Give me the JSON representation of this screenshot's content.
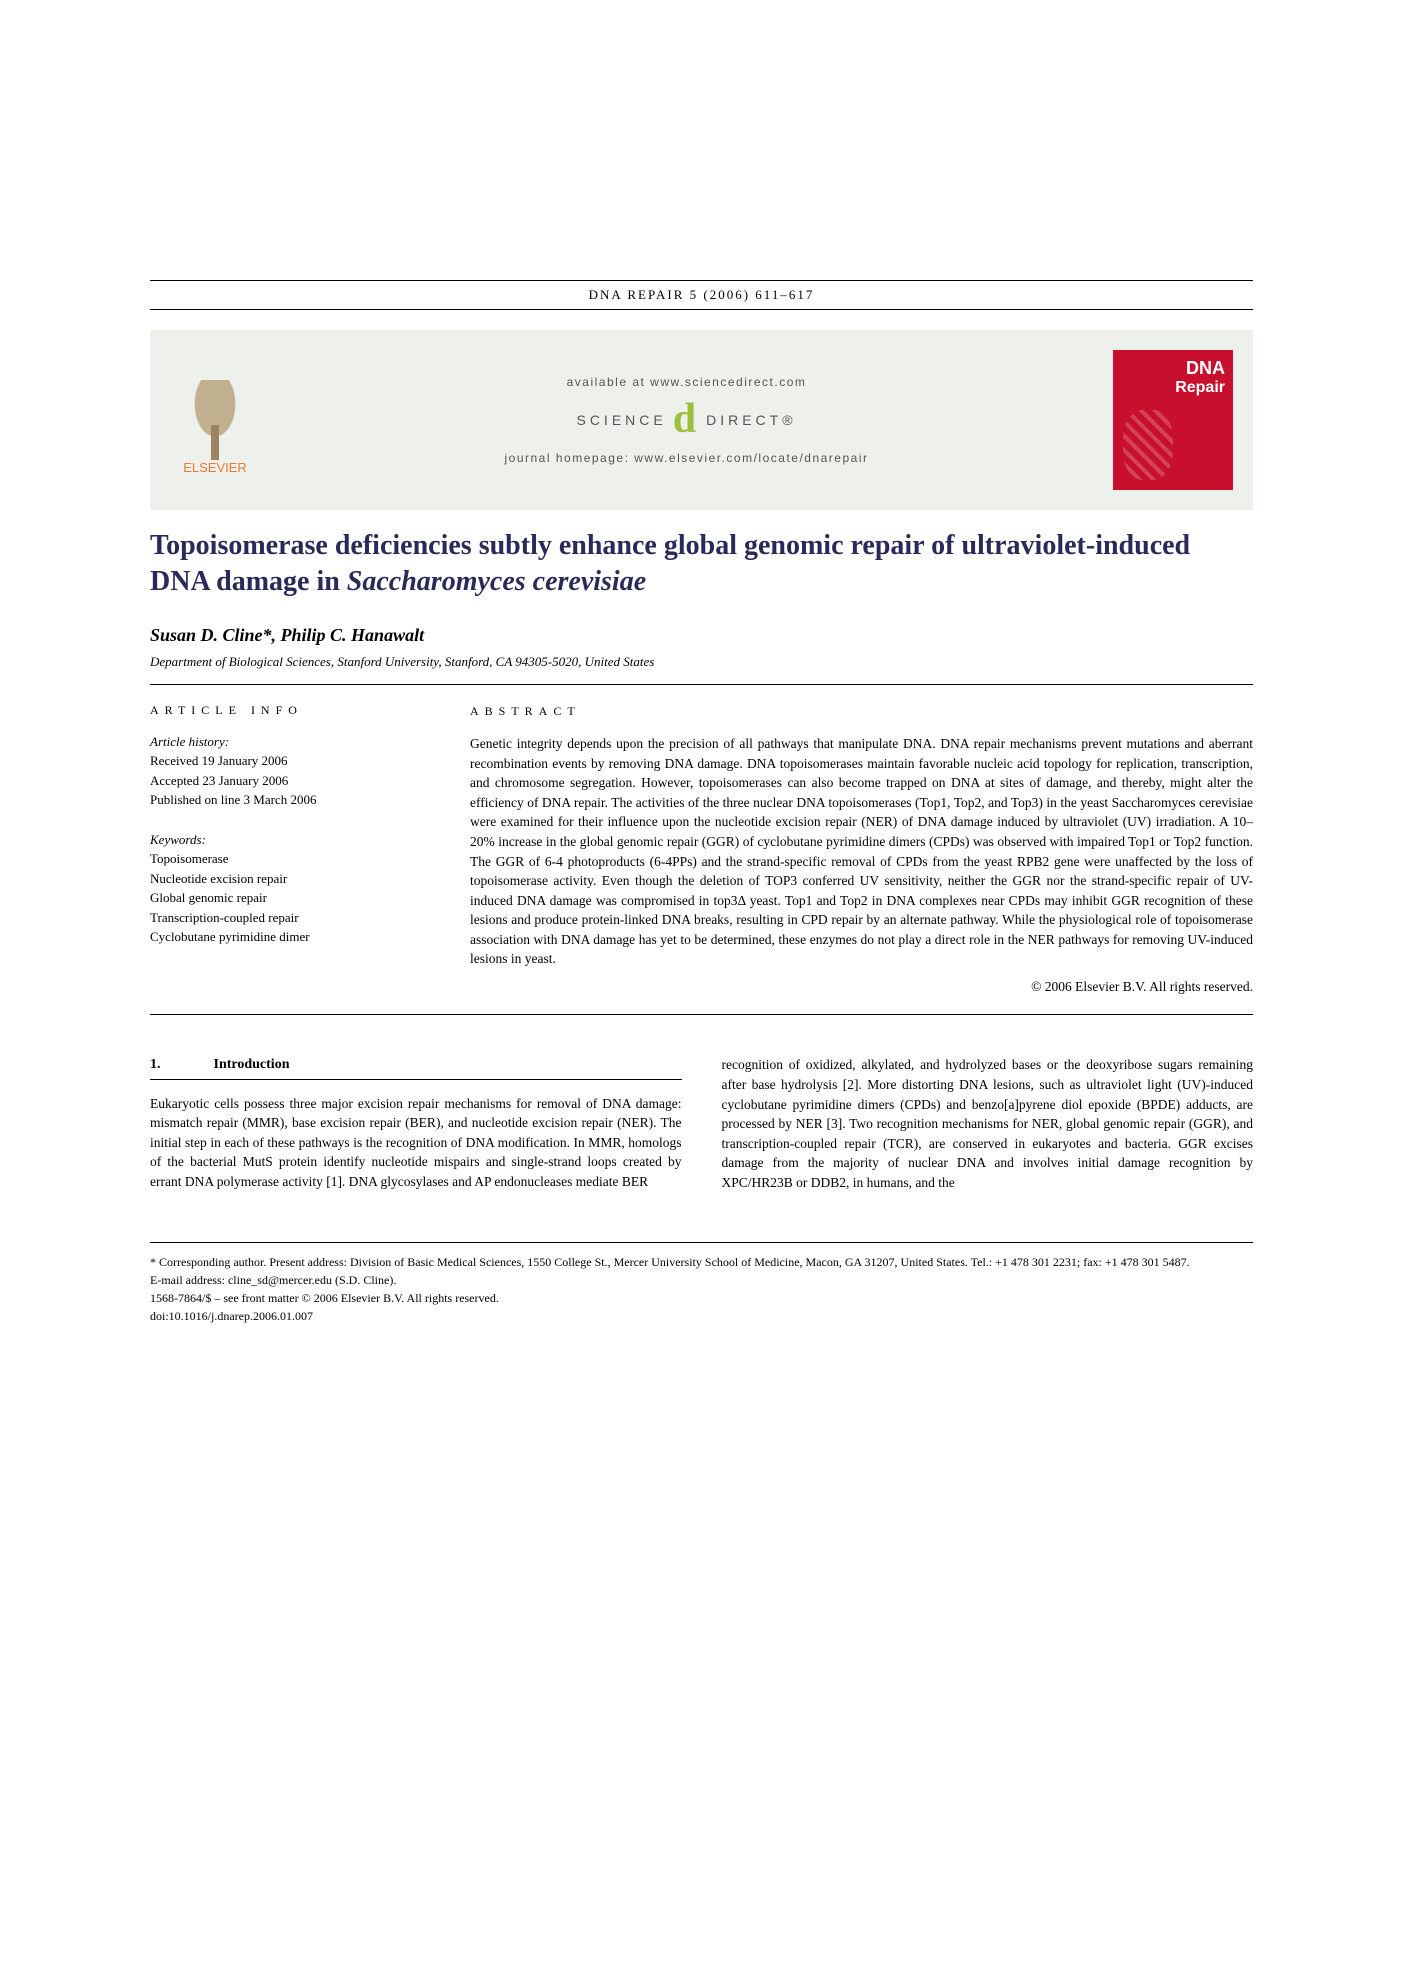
{
  "header": {
    "citation": "DNA REPAIR 5 (2006) 611–617"
  },
  "banner": {
    "elsevier": "ELSEVIER",
    "available": "available at www.sciencedirect.com",
    "sd_left": "SCIENCE",
    "sd_right": "DIRECT®",
    "homepage": "journal homepage: www.elsevier.com/locate/dnarepair",
    "cover_name1": "DNA",
    "cover_name2": "Repair"
  },
  "title": {
    "line1": "Topoisomerase deficiencies subtly enhance global genomic repair of ultraviolet-induced DNA damage in ",
    "species": "Saccharomyces cerevisiae"
  },
  "authors": "Susan D. Cline*, Philip C. Hanawalt",
  "affiliation": "Department of Biological Sciences, Stanford University, Stanford, CA 94305-5020, United States",
  "info": {
    "heading": "ARTICLE INFO",
    "history_label": "Article history:",
    "received": "Received 19 January 2006",
    "accepted": "Accepted 23 January 2006",
    "published": "Published on line 3 March 2006",
    "keywords_label": "Keywords:",
    "keywords": [
      "Topoisomerase",
      "Nucleotide excision repair",
      "Global genomic repair",
      "Transcription-coupled repair",
      "Cyclobutane pyrimidine dimer"
    ]
  },
  "abstract": {
    "heading": "ABSTRACT",
    "text": "Genetic integrity depends upon the precision of all pathways that manipulate DNA. DNA repair mechanisms prevent mutations and aberrant recombination events by removing DNA damage. DNA topoisomerases maintain favorable nucleic acid topology for replication, transcription, and chromosome segregation. However, topoisomerases can also become trapped on DNA at sites of damage, and thereby, might alter the efficiency of DNA repair. The activities of the three nuclear DNA topoisomerases (Top1, Top2, and Top3) in the yeast Saccharomyces cerevisiae were examined for their influence upon the nucleotide excision repair (NER) of DNA damage induced by ultraviolet (UV) irradiation. A 10–20% increase in the global genomic repair (GGR) of cyclobutane pyrimidine dimers (CPDs) was observed with impaired Top1 or Top2 function. The GGR of 6-4 photoproducts (6-4PPs) and the strand-specific removal of CPDs from the yeast RPB2 gene were unaffected by the loss of topoisomerase activity. Even though the deletion of TOP3 conferred UV sensitivity, neither the GGR nor the strand-specific repair of UV-induced DNA damage was compromised in top3Δ yeast. Top1 and Top2 in DNA complexes near CPDs may inhibit GGR recognition of these lesions and produce protein-linked DNA breaks, resulting in CPD repair by an alternate pathway. While the physiological role of topoisomerase association with DNA damage has yet to be determined, these enzymes do not play a direct role in the NER pathways for removing UV-induced lesions in yeast.",
    "copyright": "© 2006 Elsevier B.V. All rights reserved."
  },
  "intro": {
    "num": "1.",
    "heading": "Introduction",
    "col1": "Eukaryotic cells possess three major excision repair mechanisms for removal of DNA damage: mismatch repair (MMR), base excision repair (BER), and nucleotide excision repair (NER). The initial step in each of these pathways is the recognition of DNA modification. In MMR, homologs of the bacterial MutS protein identify nucleotide mispairs and single-strand loops created by errant DNA polymerase activity [1]. DNA glycosylases and AP endonucleases mediate BER",
    "col2": "recognition of oxidized, alkylated, and hydrolyzed bases or the deoxyribose sugars remaining after base hydrolysis [2]. More distorting DNA lesions, such as ultraviolet light (UV)-induced cyclobutane pyrimidine dimers (CPDs) and benzo[a]pyrene diol epoxide (BPDE) adducts, are processed by NER [3]. Two recognition mechanisms for NER, global genomic repair (GGR), and transcription-coupled repair (TCR), are conserved in eukaryotes and bacteria. GGR excises damage from the majority of nuclear DNA and involves initial damage recognition by XPC/HR23B or DDB2, in humans, and the"
  },
  "footer": {
    "corresponding": "* Corresponding author. Present address: Division of Basic Medical Sciences, 1550 College St., Mercer University School of Medicine, Macon, GA 31207, United States. Tel.: +1 478 301 2231; fax: +1 478 301 5487.",
    "email_label": "E-mail address:",
    "email": "cline_sd@mercer.edu (S.D. Cline).",
    "issn": "1568-7864/$ – see front matter © 2006 Elsevier B.V. All rights reserved.",
    "doi": "doi:10.1016/j.dnarep.2006.01.007"
  },
  "colors": {
    "title_color": "#2a2a5a",
    "banner_bg": "#eef0eb",
    "elsevier_orange": "#e87b2e",
    "cover_red": "#c8102e",
    "sd_green": "#9cc03c",
    "ref_blue": "#0050a0"
  }
}
